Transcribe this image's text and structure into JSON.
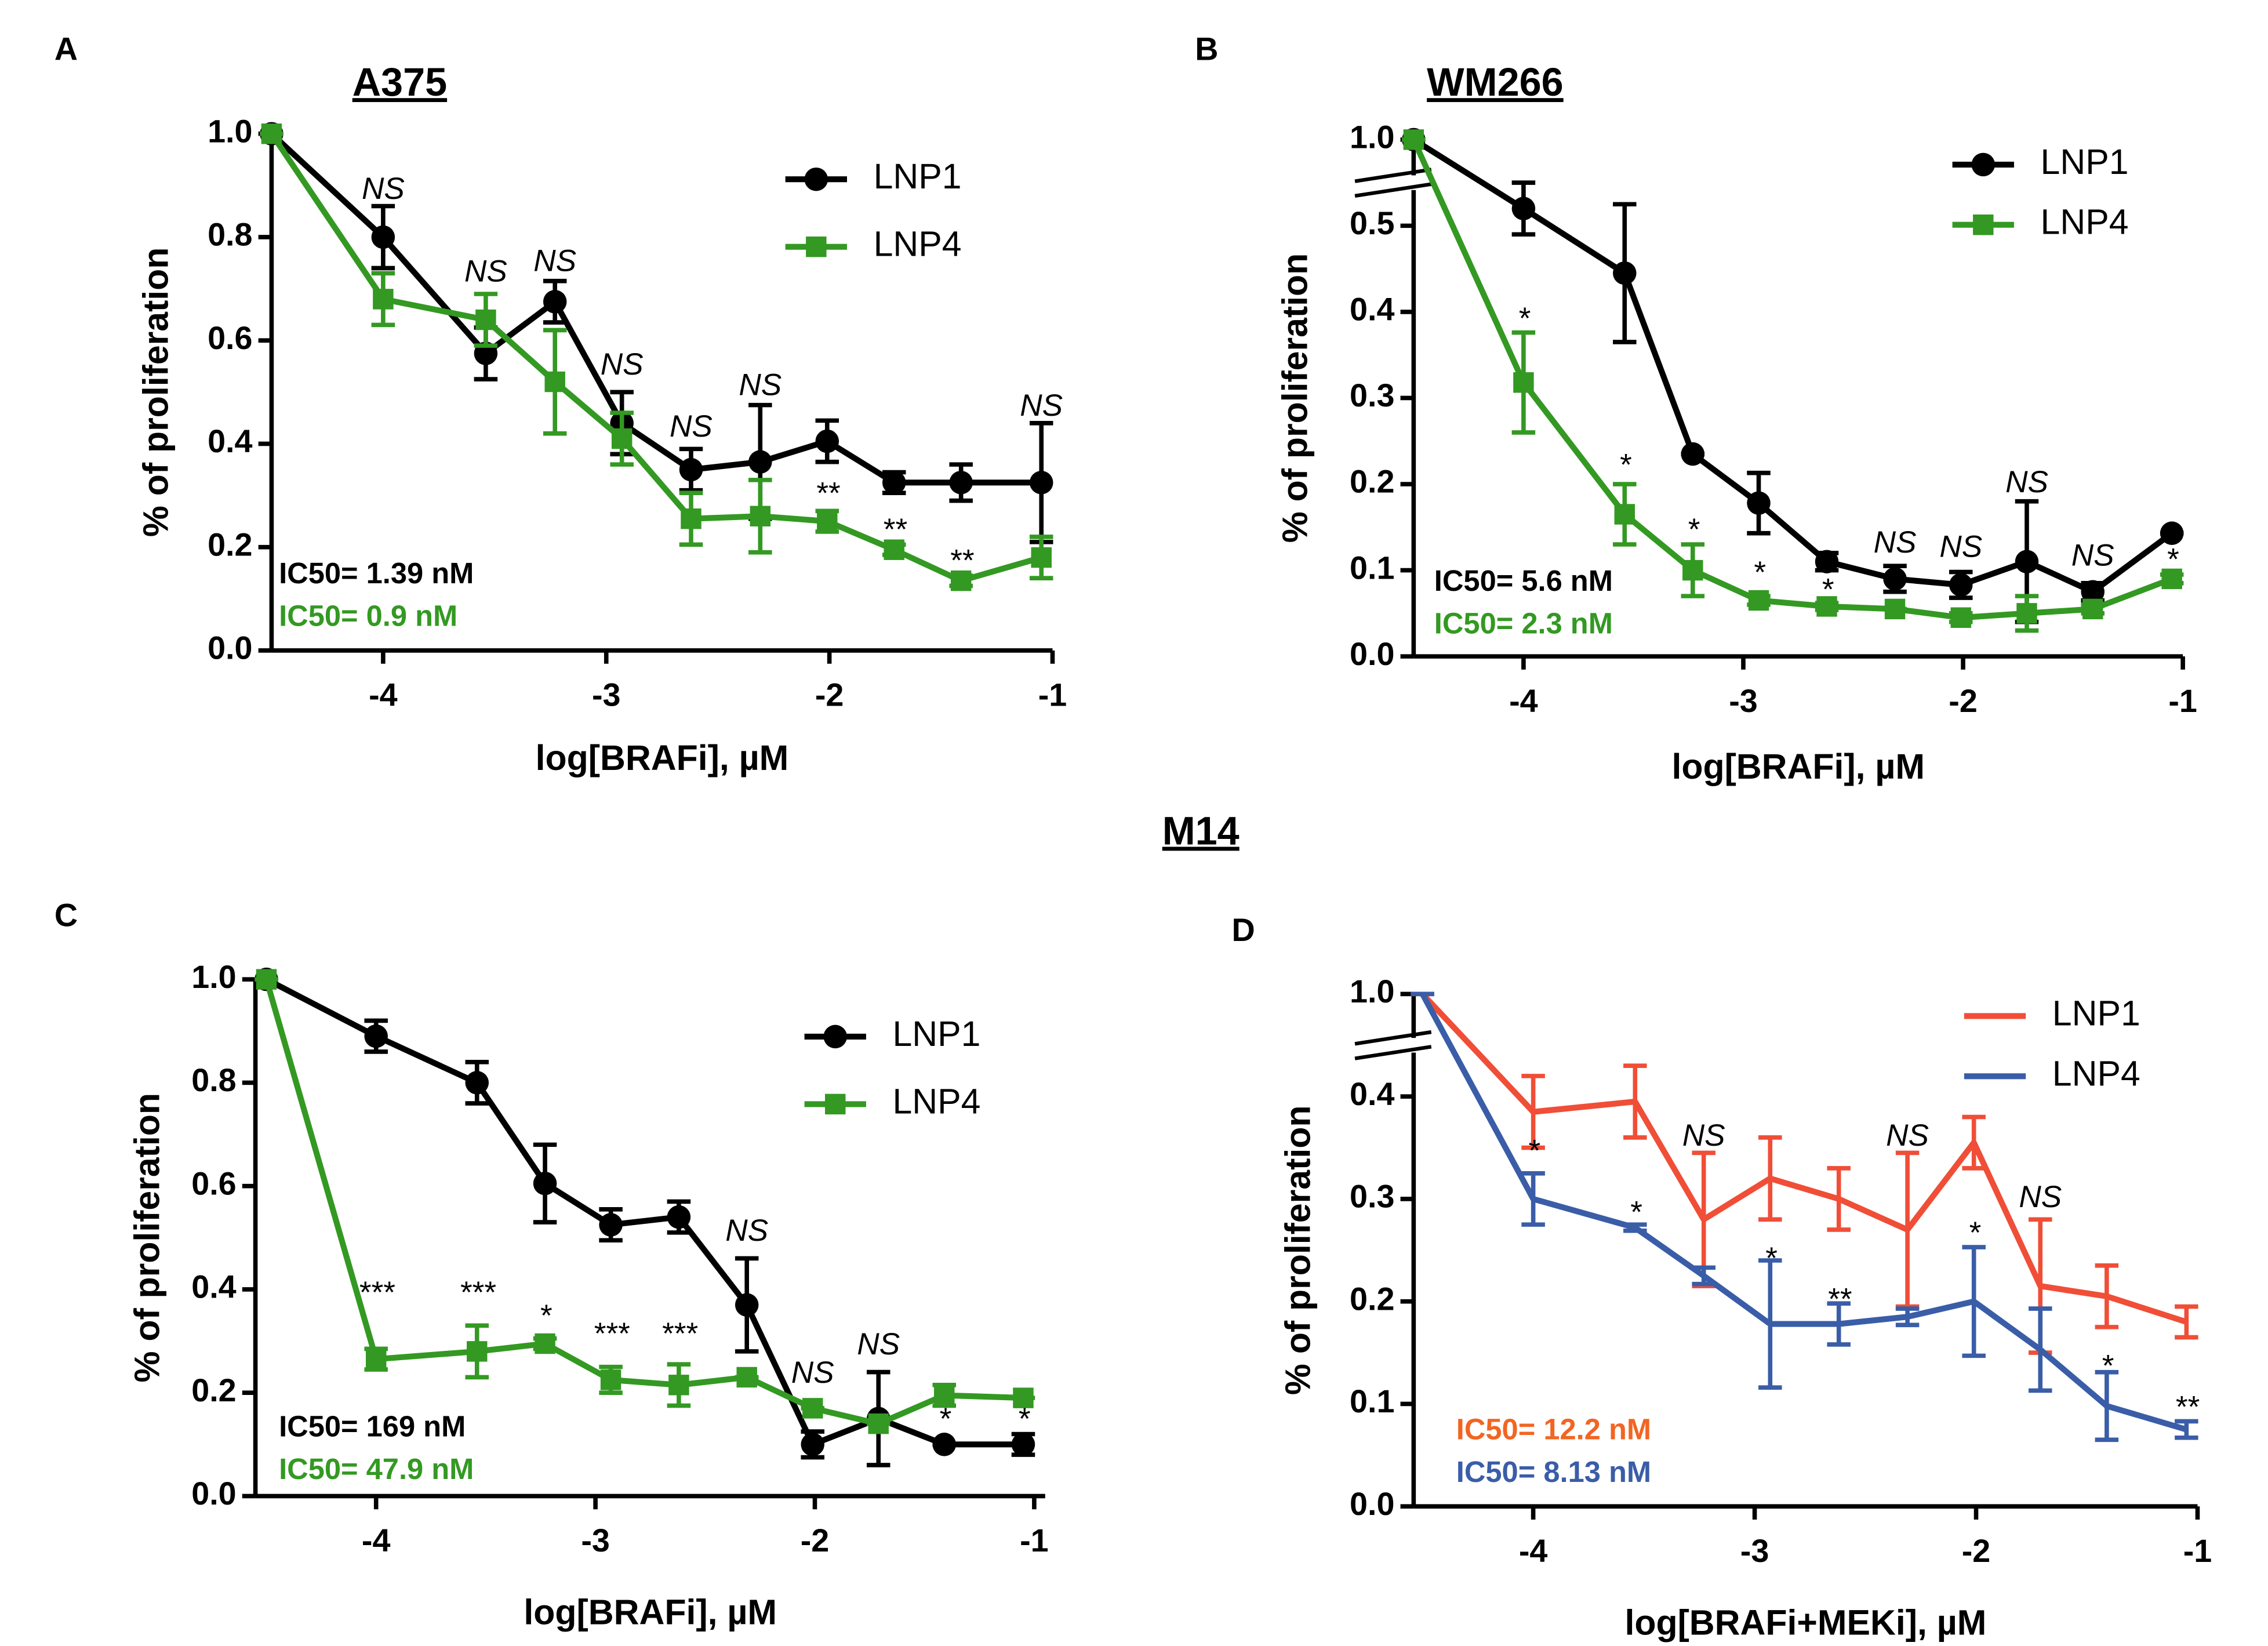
{
  "shared_title": "M14",
  "chart_data": [
    {
      "type": "line",
      "letter": "A",
      "title": "A375",
      "x_label": "log[BRAFi], µM",
      "y_label": "% of proliferation",
      "x": [
        -4.5,
        -4,
        -3.54,
        -3.23,
        -2.93,
        -2.62,
        -2.31,
        -2.01,
        -1.71,
        -1.41,
        -1.05
      ],
      "xlim": [
        -4.5,
        -1
      ],
      "xticks": [
        -4,
        -3,
        -2,
        -1
      ],
      "ylim": [
        0,
        1
      ],
      "yticks": [
        {
          "value": 0,
          "label": "0.0"
        },
        0.2,
        0.4,
        0.6,
        0.8,
        {
          "value": 1,
          "label": "1.0"
        }
      ],
      "legend": "upper right",
      "series": [
        {
          "name": "LNP1",
          "color": "#000000",
          "marker": "circle",
          "values": [
            1.0,
            0.8,
            0.575,
            0.675,
            0.44,
            0.35,
            0.365,
            0.405,
            0.325,
            0.325,
            0.325
          ],
          "errors": [
            0,
            0.06,
            0.05,
            0.04,
            0.06,
            0.04,
            0.11,
            0.04,
            0.02,
            0.035,
            0.115
          ]
        },
        {
          "name": "LNP4",
          "color": "#339922",
          "marker": "square",
          "values": [
            1.0,
            0.68,
            0.64,
            0.52,
            0.41,
            0.255,
            0.26,
            0.25,
            0.195,
            0.135,
            0.18
          ],
          "errors": [
            0,
            0.05,
            0.05,
            0.1,
            0.05,
            0.05,
            0.07,
            0.02,
            0.01,
            0.01,
            0.04
          ]
        }
      ],
      "ic50_labels": [
        {
          "text": "IC50= 1.39 nM",
          "color": "#000000"
        },
        {
          "text": "IC50= 0.9 nM",
          "color": "#339922"
        }
      ],
      "annotations": [
        {
          "x": -4,
          "y": 0.89,
          "text": "NS"
        },
        {
          "x": -3.54,
          "y": 0.73,
          "text": "NS"
        },
        {
          "x": -3.23,
          "y": 0.75,
          "text": "NS"
        },
        {
          "x": -2.93,
          "y": 0.55,
          "text": "NS"
        },
        {
          "x": -2.62,
          "y": 0.43,
          "text": "NS"
        },
        {
          "x": -2.31,
          "y": 0.51,
          "text": "NS"
        },
        {
          "x": -2.01,
          "y": 0.3,
          "text": "**"
        },
        {
          "x": -1.71,
          "y": 0.23,
          "text": "**"
        },
        {
          "x": -1.41,
          "y": 0.17,
          "text": "**"
        },
        {
          "x": -1.05,
          "y": 0.47,
          "text": "NS"
        }
      ]
    },
    {
      "type": "line",
      "letter": "B",
      "title": "WM266",
      "x_label": "log[BRAFi], µM",
      "y_label": "% of proliferation",
      "x": [
        -4.5,
        -4,
        -3.54,
        -3.23,
        -2.93,
        -2.62,
        -2.31,
        -2.01,
        -1.71,
        -1.41,
        -1.05
      ],
      "xlim": [
        -4.5,
        -1
      ],
      "xticks": [
        -4,
        -3,
        -2,
        -1
      ],
      "ylim": [
        0,
        1
      ],
      "ybreak": [
        0.55,
        0.95
      ],
      "yticks": [
        {
          "value": 0,
          "label": "0.0"
        },
        0.1,
        0.2,
        0.3,
        0.4,
        0.5,
        {
          "value": 1,
          "label": "1.0"
        }
      ],
      "legend": "upper right",
      "series": [
        {
          "name": "LNP1",
          "color": "#000000",
          "marker": "circle",
          "values": [
            1.0,
            0.52,
            0.445,
            0.235,
            0.178,
            0.11,
            0.09,
            0.083,
            0.11,
            0.075,
            0.143
          ],
          "errors": [
            0,
            0.03,
            0.08,
            0,
            0.035,
            0.01,
            0.015,
            0.015,
            0.07,
            0.01,
            0
          ]
        },
        {
          "name": "LNP4",
          "color": "#339922",
          "marker": "square",
          "values": [
            1.0,
            0.318,
            0.165,
            0.1,
            0.065,
            0.058,
            0.055,
            0.045,
            0.05,
            0.055,
            0.09
          ],
          "errors": [
            0,
            0.058,
            0.035,
            0.03,
            0.005,
            0.004,
            0,
            0.005,
            0.02,
            0.005,
            0.005
          ]
        }
      ],
      "ic50_labels": [
        {
          "text": "IC50= 5.6 nM",
          "color": "#000000"
        },
        {
          "text": "IC50= 2.3 nM",
          "color": "#339922"
        }
      ],
      "annotations": [
        {
          "x": -4,
          "y": 0.39,
          "text": "*"
        },
        {
          "x": -3.54,
          "y": 0.22,
          "text": "*"
        },
        {
          "x": -3.23,
          "y": 0.145,
          "text": "*"
        },
        {
          "x": -2.93,
          "y": 0.095,
          "text": "*"
        },
        {
          "x": -2.62,
          "y": 0.075,
          "text": "*"
        },
        {
          "x": -2.31,
          "y": 0.13,
          "text": "NS"
        },
        {
          "x": -2.01,
          "y": 0.125,
          "text": "NS"
        },
        {
          "x": -1.71,
          "y": 0.2,
          "text": "NS"
        },
        {
          "x": -1.41,
          "y": 0.115,
          "text": "NS"
        },
        {
          "x": -1.05,
          "y": 0.11,
          "text": "*"
        }
      ]
    },
    {
      "type": "line",
      "letter": "C",
      "x_label": "log[BRAFi], µM",
      "y_label": "% of proliferation",
      "x": [
        -4.5,
        -4,
        -3.54,
        -3.23,
        -2.93,
        -2.62,
        -2.31,
        -2.01,
        -1.71,
        -1.41,
        -1.05
      ],
      "xlim": [
        -4.55,
        -0.95
      ],
      "xticks": [
        -4,
        -3,
        -2,
        -1
      ],
      "ylim": [
        0,
        1
      ],
      "yticks": [
        {
          "value": 0,
          "label": "0.0"
        },
        0.2,
        0.4,
        0.6,
        0.8,
        {
          "value": 1,
          "label": "1.0"
        }
      ],
      "legend": "upper right",
      "series": [
        {
          "name": "LNP1",
          "color": "#000000",
          "marker": "circle",
          "values": [
            1.0,
            0.89,
            0.8,
            0.605,
            0.525,
            0.54,
            0.37,
            0.1,
            0.15,
            0.1,
            0.1
          ],
          "errors": [
            0,
            0.03,
            0.04,
            0.075,
            0.03,
            0.03,
            0.09,
            0.025,
            0.09,
            0,
            0.02
          ]
        },
        {
          "name": "LNP4",
          "color": "#339922",
          "marker": "square",
          "values": [
            1.0,
            0.265,
            0.28,
            0.295,
            0.225,
            0.215,
            0.23,
            0.17,
            0.14,
            0.195,
            0.19
          ],
          "errors": [
            0,
            0.02,
            0.05,
            0.01,
            0.025,
            0.04,
            0,
            0,
            0,
            0.02,
            0
          ]
        }
      ],
      "ic50_labels": [
        {
          "text": "IC50= 169 nM",
          "color": "#000000"
        },
        {
          "text": "IC50= 47.9 nM",
          "color": "#339922"
        }
      ],
      "annotations": [
        {
          "x": -4,
          "y": 0.39,
          "text": "***"
        },
        {
          "x": -3.54,
          "y": 0.39,
          "text": "***"
        },
        {
          "x": -3.23,
          "y": 0.345,
          "text": "*"
        },
        {
          "x": -2.93,
          "y": 0.31,
          "text": "***"
        },
        {
          "x": -2.62,
          "y": 0.31,
          "text": "***"
        },
        {
          "x": -2.31,
          "y": 0.51,
          "text": "NS"
        },
        {
          "x": -2.01,
          "y": 0.235,
          "text": "NS"
        },
        {
          "x": -1.71,
          "y": 0.29,
          "text": "NS"
        },
        {
          "x": -1.41,
          "y": 0.145,
          "text": "*"
        },
        {
          "x": -1.05,
          "y": 0.145,
          "text": "*"
        }
      ]
    },
    {
      "type": "line",
      "letter": "D",
      "x_label": "log[BRAFi+MEKi], µM",
      "y_label": "% of proliferation",
      "x": [
        -4.5,
        -4,
        -3.54,
        -3.23,
        -2.93,
        -2.62,
        -2.31,
        -2.01,
        -1.71,
        -1.41,
        -1.05
      ],
      "xlim": [
        -4.54,
        -1
      ],
      "xticks": [
        -4,
        -3,
        -2,
        -1
      ],
      "ylim": [
        0,
        1
      ],
      "ybreak": [
        0.45,
        0.95
      ],
      "yticks": [
        {
          "value": 0,
          "label": "0.0"
        },
        0.1,
        0.2,
        0.3,
        0.4,
        {
          "value": 1,
          "label": "1.0"
        }
      ],
      "legend": "upper right",
      "series": [
        {
          "name": "LNP1",
          "color": "#f04e37",
          "marker": "none",
          "values": [
            1.0,
            0.385,
            0.395,
            0.28,
            0.32,
            0.3,
            0.27,
            0.355,
            0.215,
            0.205,
            0.18
          ],
          "errors": [
            0,
            0.035,
            0.035,
            0.065,
            0.04,
            0.03,
            0.075,
            0.025,
            0.065,
            0.03,
            0.015
          ]
        },
        {
          "name": "LNP4",
          "color": "#3a5da8",
          "marker": "none",
          "values": [
            1.0,
            0.3,
            0.272,
            0.225,
            0.178,
            0.178,
            0.185,
            0.2,
            0.153,
            0.098,
            0.075
          ],
          "errors": [
            0,
            0.025,
            0.003,
            0.008,
            0.062,
            0.02,
            0.008,
            0.053,
            0.04,
            0.033,
            0.008
          ]
        }
      ],
      "ic50_labels": [
        {
          "text": "IC50= 12.2 nM",
          "color": "#f26522"
        },
        {
          "text": "IC50= 8.13 nM",
          "color": "#3a5da8"
        }
      ],
      "annotations": [
        {
          "x": -4,
          "y": 0.345,
          "text": "*"
        },
        {
          "x": -3.54,
          "y": 0.285,
          "text": "*"
        },
        {
          "x": -3.23,
          "y": 0.36,
          "text": "NS"
        },
        {
          "x": -2.93,
          "y": 0.24,
          "text": "*"
        },
        {
          "x": -2.62,
          "y": 0.2,
          "text": "**"
        },
        {
          "x": -2.31,
          "y": 0.36,
          "text": "NS"
        },
        {
          "x": -2.01,
          "y": 0.265,
          "text": "*"
        },
        {
          "x": -1.71,
          "y": 0.3,
          "text": "NS"
        },
        {
          "x": -1.41,
          "y": 0.135,
          "text": "*"
        },
        {
          "x": -1.05,
          "y": 0.095,
          "text": "**"
        }
      ]
    }
  ]
}
